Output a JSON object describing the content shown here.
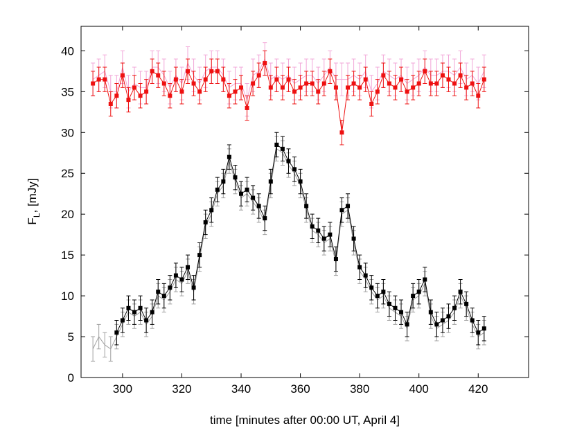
{
  "chart_data": {
    "type": "line",
    "xlabel": "time [minutes after 00:00 UT, April 4]",
    "ylabel": "F",
    "ylabel_sub": "L",
    "ylabel_rest": ", [mJy]",
    "xlim": [
      286,
      437
    ],
    "ylim": [
      0,
      43
    ],
    "xticks": [
      300,
      320,
      340,
      360,
      380,
      400,
      420
    ],
    "yticks": [
      0,
      5,
      10,
      15,
      20,
      25,
      30,
      35,
      40
    ],
    "x": [
      290,
      292,
      294,
      296,
      298,
      300,
      302,
      304,
      306,
      308,
      310,
      312,
      314,
      316,
      318,
      320,
      322,
      324,
      326,
      328,
      330,
      332,
      334,
      336,
      338,
      340,
      342,
      344,
      346,
      348,
      350,
      352,
      354,
      356,
      358,
      360,
      362,
      364,
      366,
      368,
      370,
      372,
      374,
      376,
      378,
      380,
      382,
      384,
      386,
      388,
      390,
      392,
      394,
      396,
      398,
      400,
      402,
      404,
      406,
      408,
      410,
      412,
      414,
      416,
      418,
      420,
      422
    ],
    "series": [
      {
        "color": "#f2a6d8",
        "marker": false,
        "error": 2,
        "values": [
          36.5,
          37,
          37.5,
          35,
          35,
          38,
          35,
          36,
          35.5,
          35.5,
          38,
          38,
          37,
          35.5,
          37,
          36,
          38.5,
          37,
          36,
          37.5,
          38,
          38,
          37,
          35.5,
          36,
          36,
          34,
          37,
          37.5,
          39,
          36.5,
          37,
          36.5,
          37,
          36,
          36.5,
          37,
          37,
          36,
          37,
          38,
          36.5,
          36.5,
          36.5,
          37,
          36.5,
          37.5,
          35,
          36,
          37.5,
          37,
          36.5,
          37,
          36,
          36.5,
          37,
          38,
          37,
          37,
          37.5,
          37.5,
          37,
          38,
          36.5,
          37,
          36,
          37.5
        ]
      },
      {
        "color": "#ee1111",
        "marker": true,
        "error": 1.5,
        "values": [
          36,
          36.5,
          36.5,
          33.5,
          34.5,
          37,
          34,
          35.5,
          34.5,
          35,
          37.5,
          37,
          36,
          34.5,
          36.5,
          35,
          37.5,
          36,
          35,
          36.5,
          37.5,
          37.5,
          36.5,
          34.5,
          35,
          35.5,
          33,
          36,
          37,
          38.5,
          35.5,
          36.5,
          35.5,
          36.5,
          35,
          35.5,
          36,
          36,
          35,
          36,
          37.5,
          35.5,
          30,
          35.5,
          36,
          35.5,
          36.5,
          33.5,
          35,
          37,
          36,
          35.5,
          36.5,
          35,
          35.5,
          36,
          37.5,
          36,
          36,
          37,
          36.5,
          36,
          37,
          35.5,
          36,
          34.5,
          36.5
        ]
      },
      {
        "color": "#a0a0a0",
        "marker": false,
        "error": 1.5,
        "values": [
          3.5,
          5,
          4,
          3.5,
          5,
          6.5,
          8,
          7.5,
          8,
          6.5,
          7.5,
          10,
          9.5,
          10.5,
          12,
          11.5,
          13,
          10.5,
          14.5,
          18.5,
          20,
          22.5,
          23.5,
          26.5,
          24,
          22,
          22.5,
          21.5,
          20.5,
          19,
          23.5,
          28,
          27.5,
          26,
          25,
          23.5,
          20.5,
          18,
          17.5,
          16.5,
          17,
          14,
          20,
          20.5,
          16.5,
          13,
          12,
          10.5,
          9.5,
          10,
          8.5,
          8,
          7.5,
          6,
          9.5,
          10,
          11.5,
          7.5,
          6,
          6.5,
          7,
          8,
          10,
          8.5,
          6.5,
          5,
          5.5
        ]
      },
      {
        "color": "#000000",
        "marker": true,
        "error": 1.5,
        "values": [
          null,
          null,
          null,
          null,
          5.5,
          7,
          8.5,
          8,
          8.5,
          7,
          8,
          10.5,
          10,
          11,
          12.5,
          12,
          13.5,
          11,
          15,
          19,
          20.5,
          23,
          24,
          27,
          24.5,
          22.5,
          23,
          22,
          21,
          19.5,
          24,
          28.5,
          28,
          26.5,
          25.5,
          24,
          21,
          18.5,
          18,
          17,
          17.5,
          14.5,
          20.5,
          21,
          17,
          13.5,
          12.5,
          11,
          10,
          10.5,
          9,
          8.5,
          8,
          6.5,
          10,
          10.5,
          12,
          8,
          6.5,
          7,
          7.5,
          8.5,
          10.5,
          9,
          7,
          5.5,
          6
        ]
      }
    ]
  }
}
